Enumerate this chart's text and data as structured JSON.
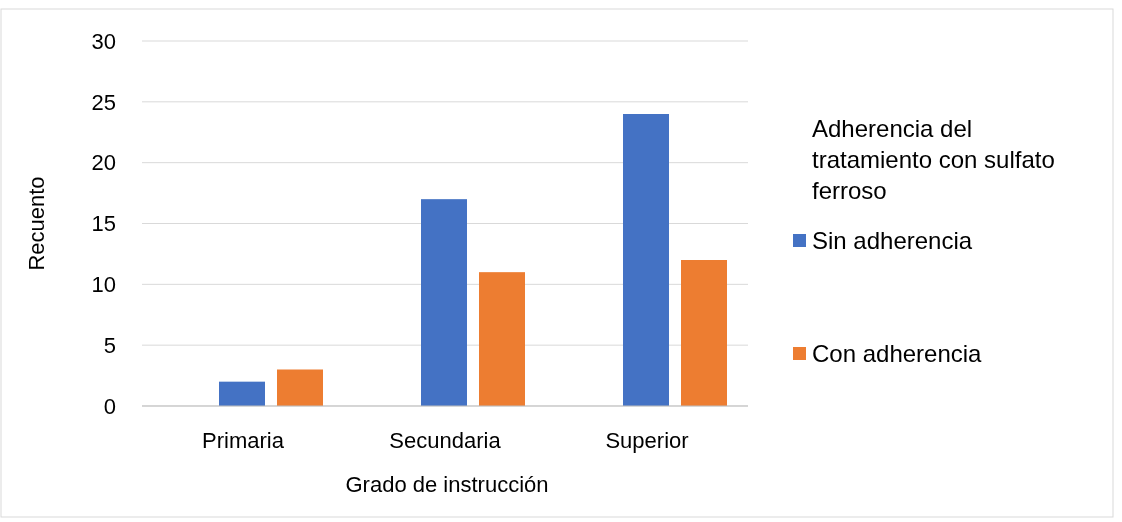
{
  "chart_data": {
    "type": "bar",
    "xlabel": "Grado de instrucción",
    "ylabel": "Recuento",
    "legend_title": "Adherencia del tratamiento con sulfato ferroso",
    "categories": [
      "Primaria",
      "Secundaria",
      "Superior"
    ],
    "series": [
      {
        "name": "Sin adherencia",
        "color": "#4472c4",
        "values": [
          2,
          17,
          24
        ]
      },
      {
        "name": "Con adherencia",
        "color": "#ed7d31",
        "values": [
          3,
          11,
          12
        ]
      }
    ],
    "ylim": [
      0,
      30
    ],
    "yticks": [
      0,
      5,
      10,
      15,
      20,
      25,
      30
    ],
    "grid": "y",
    "legend": "right"
  }
}
